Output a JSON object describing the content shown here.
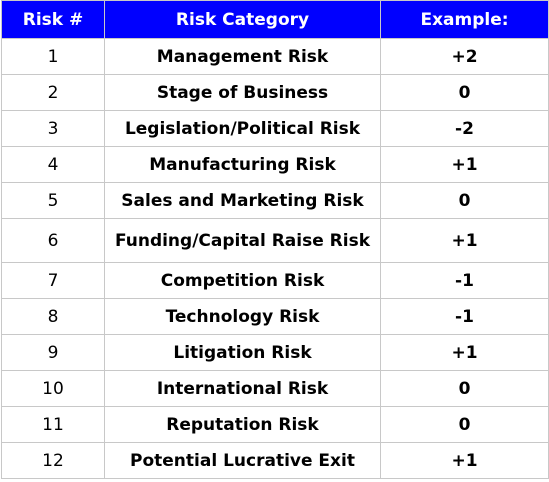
{
  "table": {
    "headers": [
      "Risk #",
      "Risk Category",
      "Example:"
    ],
    "rows": [
      {
        "num": "1",
        "category": "Management Risk",
        "example": "+2"
      },
      {
        "num": "2",
        "category": "Stage of Business",
        "example": "0"
      },
      {
        "num": "3",
        "category": "Legislation/Political Risk",
        "example": "-2"
      },
      {
        "num": "4",
        "category": "Manufacturing Risk",
        "example": "+1"
      },
      {
        "num": "5",
        "category": "Sales and Marketing Risk",
        "example": "0"
      },
      {
        "num": "6",
        "category": "Funding/Capital Raise Risk",
        "example": "+1"
      },
      {
        "num": "7",
        "category": "Competition Risk",
        "example": "-1"
      },
      {
        "num": "8",
        "category": "Technology Risk",
        "example": "-1"
      },
      {
        "num": "9",
        "category": "Litigation Risk",
        "example": "+1"
      },
      {
        "num": "10",
        "category": "International Risk",
        "example": "0"
      },
      {
        "num": "11",
        "category": "Reputation Risk",
        "example": "0"
      },
      {
        "num": "12",
        "category": "Potential Lucrative Exit",
        "example": "+1"
      }
    ],
    "header_color": "#0000ff",
    "header_text_color": "#ffffff",
    "border_color": "#c8c8c8"
  }
}
